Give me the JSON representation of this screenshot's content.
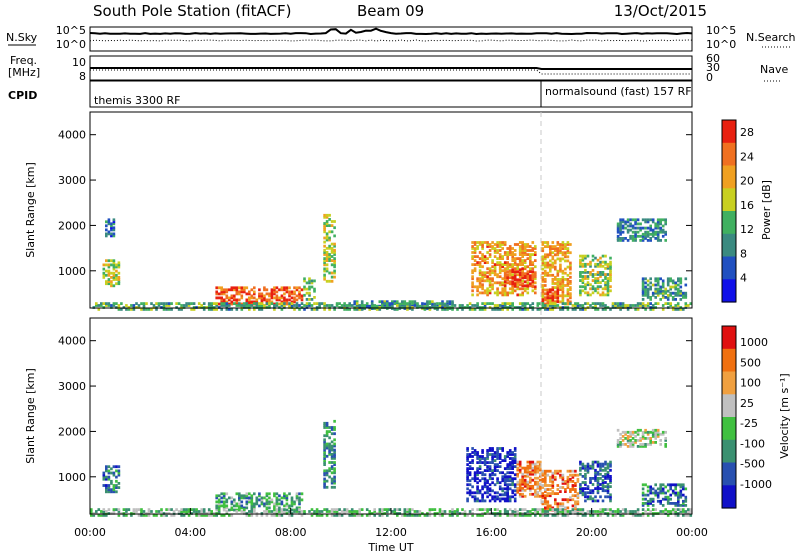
{
  "header": {
    "station": "South Pole Station (fitACF)",
    "beam": "Beam 09",
    "date": "13/Oct/2015"
  },
  "params": {
    "nsky_label": "N.Sky",
    "nsearch_label": "N.Search",
    "freq_label_line1": "Freq.",
    "freq_label_line2": "[MHz]",
    "nave_label": "Nave",
    "cpid_label": "CPID",
    "noise_ticks_left": [
      "10^5",
      "10^0"
    ],
    "noise_ticks_right": [
      "10^5",
      "10^0"
    ],
    "freq_ticks": [
      "10",
      "8"
    ],
    "nave_ticks": [
      "60",
      "30",
      "0"
    ],
    "cpid_segments": [
      {
        "label": "themis 3300 RF",
        "start_hour": 0
      },
      {
        "label": "normalsound (fast) 157 RF",
        "start_hour": 18
      }
    ]
  },
  "time_axis": {
    "label": "Time UT",
    "ticks": [
      "00:00",
      "04:00",
      "08:00",
      "12:00",
      "16:00",
      "20:00",
      "00:00"
    ]
  },
  "chart_data": [
    {
      "type": "heatmap",
      "title": "",
      "xlabel": "Time UT",
      "ylabel": "Slant Range [km]",
      "xlim": [
        0,
        24
      ],
      "ylim": [
        180,
        4500
      ],
      "yticks": [
        "1000",
        "2000",
        "3000",
        "4000"
      ],
      "colorbar": {
        "label": "Power [dB]",
        "ticks": [
          "4",
          "8",
          "12",
          "16",
          "20",
          "24",
          "28"
        ],
        "range": [
          0,
          30
        ],
        "colors": [
          "#1010e8",
          "#2050c0",
          "#3a8a80",
          "#40b060",
          "#c8d020",
          "#f0a020",
          "#f07020",
          "#e82010"
        ]
      },
      "regions": [
        {
          "t0": 0.5,
          "t1": 1.2,
          "r0": 700,
          "r1": 1300,
          "level": 0.55
        },
        {
          "t0": 0.6,
          "t1": 1.0,
          "r0": 1800,
          "r1": 2200,
          "level": 0.25
        },
        {
          "t0": 5.0,
          "t1": 8.5,
          "r0": 300,
          "r1": 700,
          "level": 0.85
        },
        {
          "t0": 8.5,
          "t1": 9.0,
          "r0": 400,
          "r1": 900,
          "level": 0.45
        },
        {
          "t0": 9.3,
          "t1": 9.8,
          "r0": 800,
          "r1": 2300,
          "level": 0.55
        },
        {
          "t0": 15.2,
          "t1": 17.8,
          "r0": 500,
          "r1": 1700,
          "level": 0.72
        },
        {
          "t0": 16.5,
          "t1": 17.7,
          "r0": 700,
          "r1": 1100,
          "level": 0.9
        },
        {
          "t0": 18.0,
          "t1": 19.2,
          "r0": 300,
          "r1": 1700,
          "level": 0.7
        },
        {
          "t0": 18.0,
          "t1": 18.7,
          "r0": 350,
          "r1": 650,
          "level": 0.9
        },
        {
          "t0": 19.5,
          "t1": 20.8,
          "r0": 500,
          "r1": 1400,
          "level": 0.5
        },
        {
          "t0": 21.0,
          "t1": 23.0,
          "r0": 1700,
          "r1": 2200,
          "level": 0.3
        },
        {
          "t0": 22.0,
          "t1": 23.8,
          "r0": 400,
          "r1": 900,
          "level": 0.35
        },
        {
          "t0": 10.5,
          "t1": 14.5,
          "r0": 200,
          "r1": 400,
          "level": 0.35
        },
        {
          "t0": 0.0,
          "t1": 24.0,
          "r0": 180,
          "r1": 350,
          "level": 0.4
        }
      ]
    },
    {
      "type": "heatmap",
      "title": "",
      "xlabel": "Time UT",
      "ylabel": "Slant Range [km]",
      "xlim": [
        0,
        24
      ],
      "ylim": [
        180,
        4500
      ],
      "yticks": [
        "1000",
        "2000",
        "3000",
        "4000"
      ],
      "colorbar": {
        "label": "Velocity [m s⁻¹]",
        "ticks": [
          "1000",
          "500",
          "100",
          "25",
          "-25",
          "-100",
          "-500",
          "-1000"
        ],
        "colors": [
          "#1010c8",
          "#2850b0",
          "#3a9070",
          "#40c040",
          "#c0c0c0",
          "#f0a040",
          "#f07010",
          "#e01010"
        ]
      },
      "regions": [
        {
          "t0": 0.5,
          "t1": 1.2,
          "r0": 700,
          "r1": 1300,
          "level": 0.25
        },
        {
          "t0": 5.0,
          "t1": 8.5,
          "r0": 300,
          "r1": 700,
          "level": 0.35
        },
        {
          "t0": 9.3,
          "t1": 9.8,
          "r0": 800,
          "r1": 2300,
          "level": 0.3
        },
        {
          "t0": 15.0,
          "t1": 17.0,
          "r0": 500,
          "r1": 1700,
          "level": 0.1
        },
        {
          "t0": 17.0,
          "t1": 18.0,
          "r0": 600,
          "r1": 1400,
          "level": 0.75
        },
        {
          "t0": 18.0,
          "t1": 19.5,
          "r0": 300,
          "r1": 1200,
          "level": 0.75
        },
        {
          "t0": 19.5,
          "t1": 20.8,
          "r0": 500,
          "r1": 1400,
          "level": 0.2
        },
        {
          "t0": 21.0,
          "t1": 23.0,
          "r0": 1700,
          "r1": 2100,
          "level": 0.5
        },
        {
          "t0": 22.0,
          "t1": 23.8,
          "r0": 400,
          "r1": 900,
          "level": 0.25
        },
        {
          "t0": 0.0,
          "t1": 24.0,
          "r0": 180,
          "r1": 350,
          "level": 0.45
        }
      ]
    }
  ]
}
